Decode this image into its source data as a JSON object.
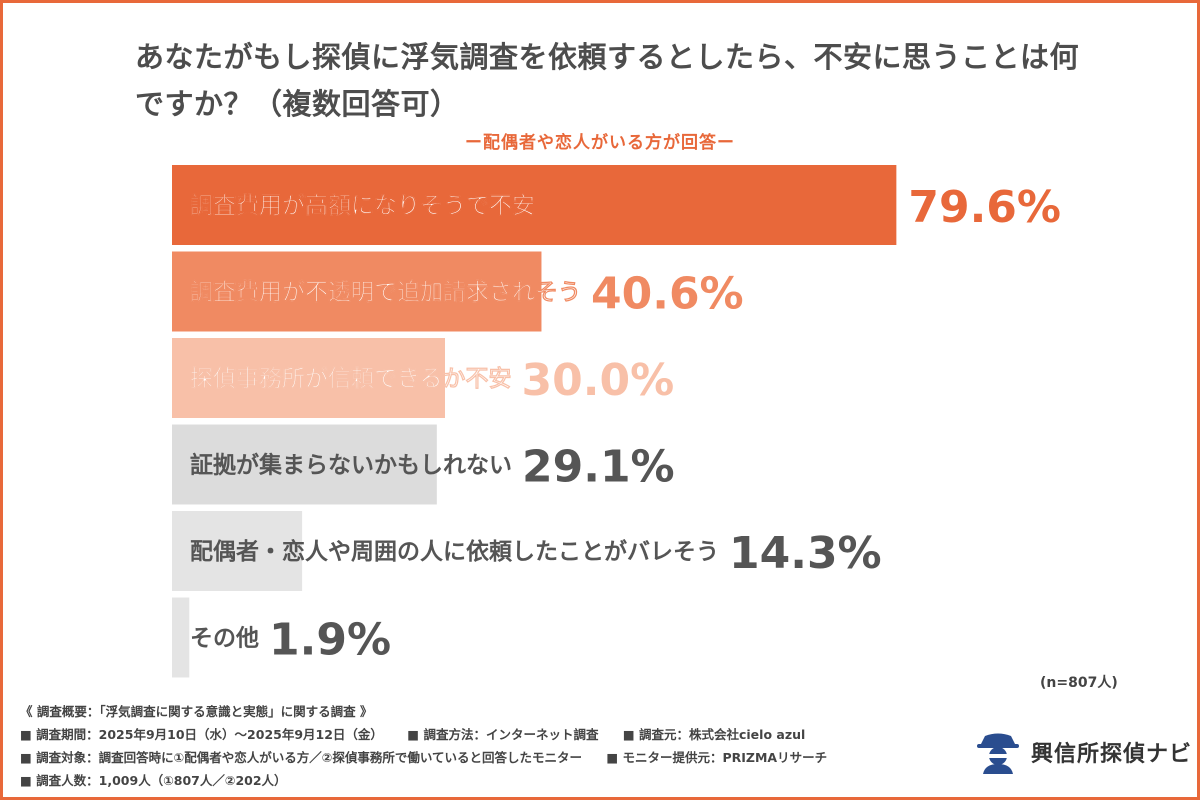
{
  "chart_data": {
    "type": "bar",
    "orientation": "horizontal",
    "title": "あなたがもし探偵に浮気調査を依頼するとしたら、不安に思うことは何ですか？（複数回答可）",
    "subtitle": "ー配偶者や恋人がいる方が回答ー",
    "categories": [
      "調査費用が高額になりそうで不安",
      "調査費用が不透明で追加請求されそう",
      "探偵事務所が信頼できるか不安",
      "証拠が集まらないかもしれない",
      "配偶者・恋人や周囲の人に依頼したことがバレそう",
      "その他"
    ],
    "values": [
      79.6,
      40.6,
      30.0,
      29.1,
      14.3,
      1.9
    ],
    "value_labels": [
      "79.6%",
      "40.6%",
      "30.0%",
      "29.1%",
      "14.3%",
      "1.9%"
    ],
    "bar_colors": [
      "#e8683a",
      "#f08a62",
      "#f8c0a8",
      "#dcdcdc",
      "#e4e4e4",
      "#e4e4e4"
    ],
    "label_colors": [
      "#ffffff",
      "#ffffff",
      "#ffffff",
      "#555555",
      "#555555",
      "#555555"
    ],
    "value_colors": [
      "#e8683a",
      "#f08a62",
      "#f8c0a8",
      "#555555",
      "#555555",
      "#555555"
    ],
    "xlim": [
      0,
      100
    ],
    "grid": false,
    "n_note": "(n=807人)"
  },
  "footer": {
    "summary": "《 調査概要：「浮気調査に関する意識と実態」に関する調査 》",
    "period": "■ 調査期間：2025年9月10日（水）〜2025年9月12日（金）",
    "method": "■ 調査方法：インターネット調査",
    "source": "■ 調査元：株式会社cielo azul",
    "target": "■ 調査対象：調査回答時に①配偶者や恋人がいる方／②探偵事務所で働いていると回答したモニター",
    "provider": "■ モニター提供元：PRIZMAリサーチ",
    "count": "■ 調査人数：1,009人（①807人／②202人）"
  },
  "logo": {
    "text": "興信所探偵ナビ",
    "icon": "detective-icon"
  },
  "colors": {
    "accent": "#e8683a",
    "border": "#e8683a",
    "logo_icon": "#2a4d8f"
  }
}
